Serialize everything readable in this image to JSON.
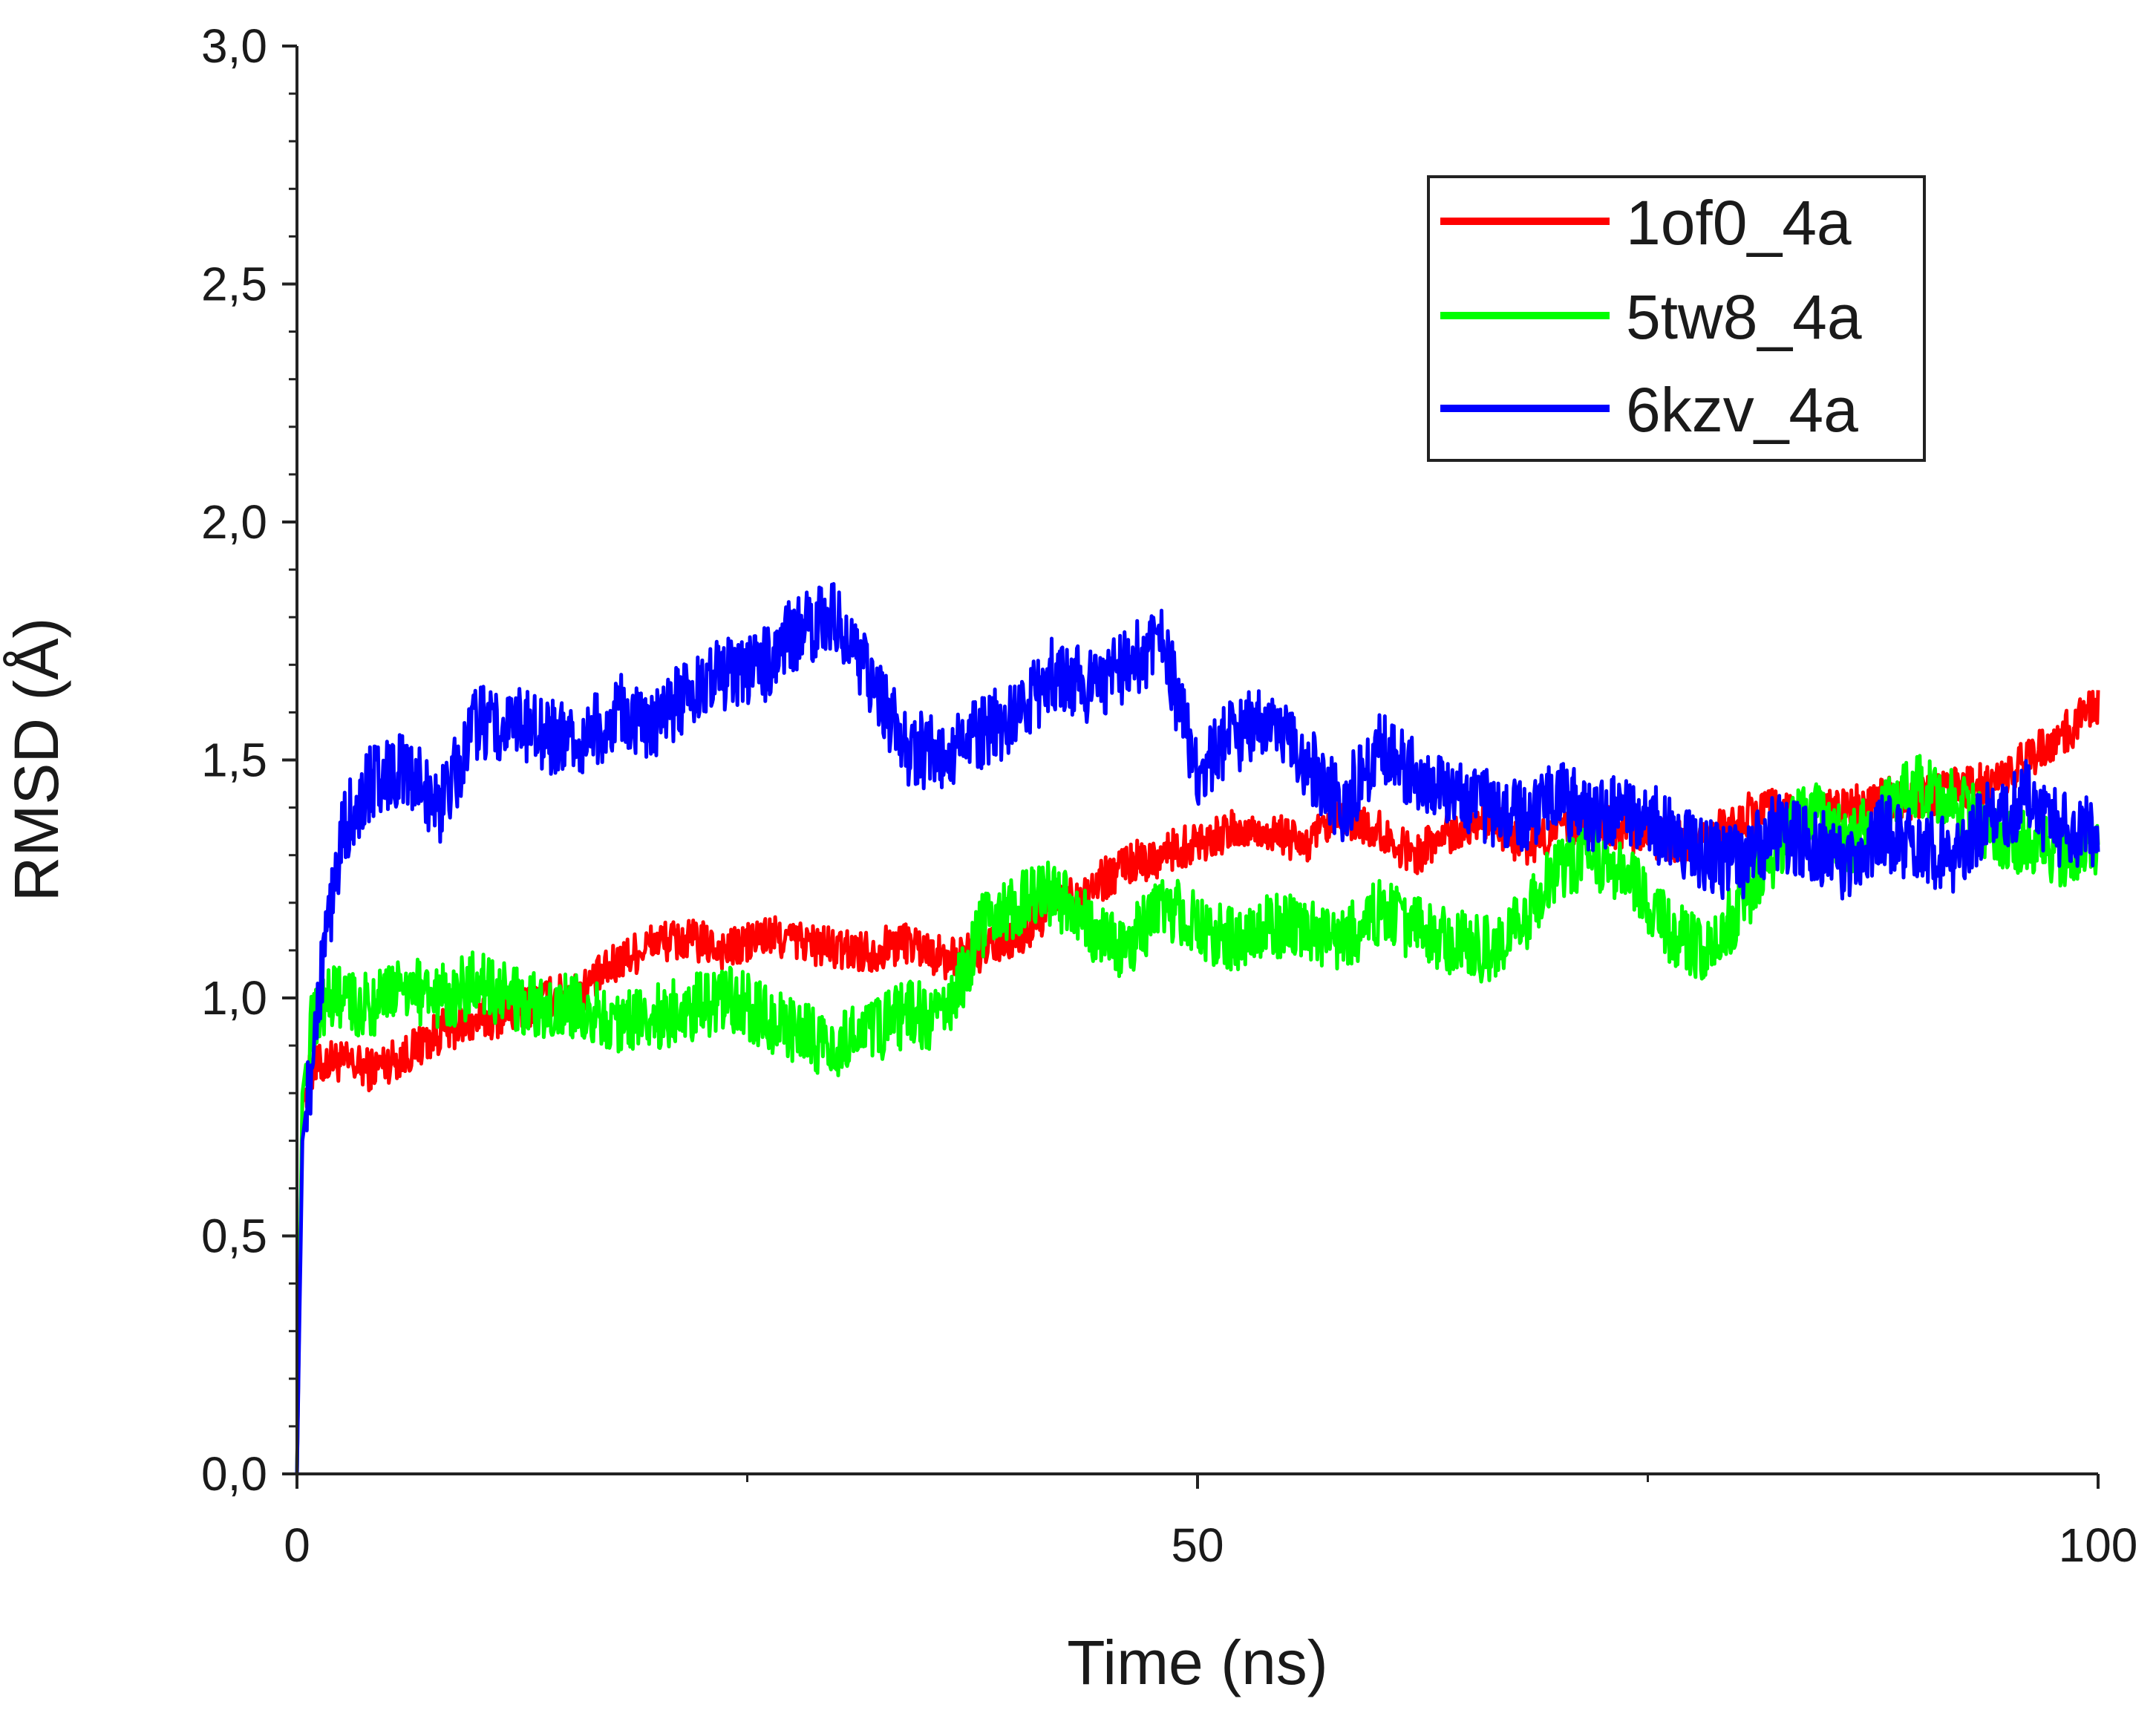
{
  "chart_data": {
    "type": "line",
    "title": "",
    "xlabel": "Time (ns)",
    "ylabel": "RMSD (Å)",
    "xlim": [
      0,
      100
    ],
    "ylim": [
      0,
      3.0
    ],
    "x_ticks": [
      "0",
      "50",
      "100"
    ],
    "y_ticks": [
      "0,0",
      "0,5",
      "1,0",
      "1,5",
      "2,0",
      "2,5",
      "3,0"
    ],
    "grid": false,
    "legend_position": "top-right",
    "series": [
      {
        "name": "1of0_4a",
        "color": "#ff0000",
        "x": [
          0,
          0.3,
          0.8,
          2,
          4,
          6,
          8,
          10,
          12,
          14,
          16,
          18,
          20,
          22,
          24,
          26,
          28,
          30,
          32,
          34,
          36,
          38,
          40,
          42,
          44,
          46,
          48,
          50,
          52,
          54,
          56,
          58,
          60,
          62,
          64,
          66,
          68,
          70,
          72,
          74,
          76,
          78,
          80,
          82,
          84,
          86,
          88,
          90,
          92,
          94,
          96,
          98,
          100
        ],
        "y": [
          0.0,
          0.78,
          0.85,
          0.87,
          0.85,
          0.88,
          0.93,
          0.95,
          0.97,
          1.0,
          1.02,
          1.08,
          1.12,
          1.12,
          1.1,
          1.13,
          1.12,
          1.1,
          1.1,
          1.12,
          1.08,
          1.1,
          1.12,
          1.2,
          1.23,
          1.28,
          1.3,
          1.33,
          1.35,
          1.35,
          1.32,
          1.38,
          1.35,
          1.3,
          1.35,
          1.38,
          1.32,
          1.35,
          1.37,
          1.35,
          1.33,
          1.32,
          1.38,
          1.4,
          1.38,
          1.4,
          1.42,
          1.42,
          1.44,
          1.45,
          1.5,
          1.55,
          1.62
        ]
      },
      {
        "name": "5tw8_4a",
        "color": "#00ff00",
        "x": [
          0,
          0.3,
          0.8,
          2,
          4,
          6,
          8,
          10,
          12,
          14,
          16,
          18,
          20,
          22,
          24,
          26,
          28,
          30,
          32,
          34,
          36,
          38,
          40,
          42,
          44,
          46,
          48,
          50,
          52,
          54,
          56,
          58,
          60,
          62,
          64,
          66,
          68,
          70,
          72,
          74,
          76,
          78,
          80,
          82,
          84,
          86,
          88,
          90,
          92,
          94,
          96,
          98,
          100
        ],
        "y": [
          0.0,
          0.8,
          0.95,
          1.0,
          0.98,
          1.02,
          1.0,
          1.03,
          1.0,
          0.98,
          0.98,
          0.95,
          0.96,
          0.98,
          1.0,
          0.96,
          0.92,
          0.9,
          0.93,
          0.97,
          0.95,
          1.15,
          1.2,
          1.22,
          1.15,
          1.1,
          1.2,
          1.15,
          1.12,
          1.15,
          1.15,
          1.12,
          1.18,
          1.15,
          1.12,
          1.1,
          1.15,
          1.28,
          1.3,
          1.25,
          1.15,
          1.1,
          1.18,
          1.3,
          1.4,
          1.32,
          1.38,
          1.45,
          1.42,
          1.35,
          1.32,
          1.3,
          1.32
        ]
      },
      {
        "name": "6kzv_4a",
        "color": "#0000ff",
        "x": [
          0,
          0.3,
          0.8,
          1.5,
          2.5,
          4,
          6,
          8,
          10,
          12,
          14,
          16,
          18,
          20,
          22,
          24,
          26,
          28,
          30,
          32,
          34,
          36,
          38,
          40,
          42,
          44,
          46,
          48,
          50,
          52,
          54,
          56,
          58,
          60,
          62,
          64,
          66,
          68,
          70,
          72,
          74,
          76,
          78,
          80,
          82,
          84,
          86,
          88,
          90,
          92,
          94,
          96,
          98,
          100
        ],
        "y": [
          0.0,
          0.7,
          0.85,
          1.1,
          1.35,
          1.45,
          1.48,
          1.4,
          1.58,
          1.58,
          1.55,
          1.55,
          1.6,
          1.58,
          1.65,
          1.68,
          1.7,
          1.78,
          1.8,
          1.65,
          1.52,
          1.52,
          1.55,
          1.6,
          1.68,
          1.65,
          1.7,
          1.75,
          1.48,
          1.55,
          1.58,
          1.5,
          1.4,
          1.52,
          1.48,
          1.42,
          1.4,
          1.38,
          1.42,
          1.38,
          1.4,
          1.35,
          1.3,
          1.28,
          1.35,
          1.33,
          1.28,
          1.35,
          1.32,
          1.3,
          1.38,
          1.42,
          1.35,
          1.35
        ]
      }
    ]
  }
}
